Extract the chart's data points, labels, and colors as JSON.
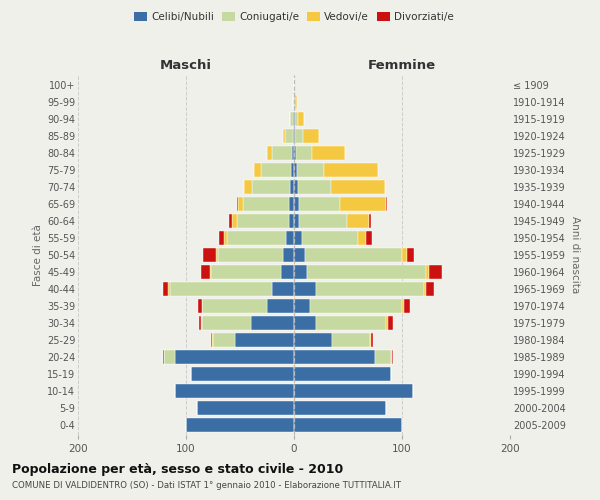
{
  "age_groups": [
    "0-4",
    "5-9",
    "10-14",
    "15-19",
    "20-24",
    "25-29",
    "30-34",
    "35-39",
    "40-44",
    "45-49",
    "50-54",
    "55-59",
    "60-64",
    "65-69",
    "70-74",
    "75-79",
    "80-84",
    "85-89",
    "90-94",
    "95-99",
    "100+"
  ],
  "birth_years": [
    "2005-2009",
    "2000-2004",
    "1995-1999",
    "1990-1994",
    "1985-1989",
    "1980-1984",
    "1975-1979",
    "1970-1974",
    "1965-1969",
    "1960-1964",
    "1955-1959",
    "1950-1954",
    "1945-1949",
    "1940-1944",
    "1935-1939",
    "1930-1934",
    "1925-1929",
    "1920-1924",
    "1915-1919",
    "1910-1914",
    "≤ 1909"
  ],
  "maschi": {
    "celibi": [
      100,
      90,
      110,
      95,
      110,
      55,
      40,
      25,
      20,
      12,
      10,
      7,
      5,
      5,
      4,
      3,
      2,
      1,
      1,
      0,
      0
    ],
    "coniugati": [
      0,
      0,
      0,
      0,
      10,
      20,
      45,
      60,
      95,
      65,
      60,
      55,
      48,
      42,
      35,
      28,
      18,
      7,
      3,
      1,
      0
    ],
    "vedovi": [
      0,
      0,
      0,
      0,
      0,
      1,
      1,
      0,
      2,
      1,
      2,
      3,
      4,
      5,
      7,
      6,
      5,
      2,
      0,
      0,
      0
    ],
    "divorziati": [
      0,
      0,
      0,
      0,
      1,
      1,
      2,
      4,
      4,
      8,
      12,
      4,
      3,
      1,
      0,
      0,
      0,
      0,
      0,
      0,
      0
    ]
  },
  "femmine": {
    "nubili": [
      100,
      85,
      110,
      90,
      75,
      35,
      20,
      15,
      20,
      12,
      10,
      7,
      5,
      5,
      4,
      3,
      2,
      1,
      1,
      0,
      0
    ],
    "coniugate": [
      0,
      0,
      0,
      0,
      15,
      35,
      65,
      85,
      100,
      110,
      90,
      52,
      44,
      38,
      30,
      25,
      15,
      7,
      3,
      1,
      0
    ],
    "vedove": [
      0,
      0,
      0,
      0,
      1,
      1,
      2,
      2,
      2,
      3,
      5,
      8,
      20,
      42,
      50,
      50,
      30,
      15,
      5,
      2,
      0
    ],
    "divorziate": [
      0,
      0,
      0,
      0,
      1,
      2,
      5,
      5,
      8,
      12,
      6,
      5,
      2,
      1,
      0,
      0,
      0,
      0,
      0,
      0,
      0
    ]
  },
  "colors": {
    "celibi": "#3a6ea5",
    "coniugati": "#c5d9a0",
    "vedovi": "#f5c842",
    "divorziati": "#cc1111"
  },
  "xlim": 200,
  "title": "Popolazione per età, sesso e stato civile - 2010",
  "subtitle": "COMUNE DI VALDIDENTRO (SO) - Dati ISTAT 1° gennaio 2010 - Elaborazione TUTTITALIA.IT",
  "ylabel_left": "Fasce di età",
  "ylabel_right": "Anni di nascita",
  "xlabel_maschi": "Maschi",
  "xlabel_femmine": "Femmine",
  "bg_color": "#f0f0eb"
}
